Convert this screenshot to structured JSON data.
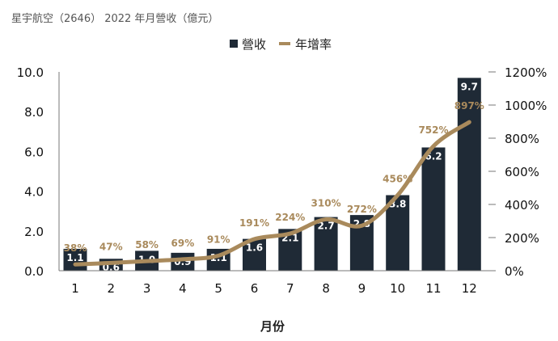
{
  "title": "星宇航空（2646） 2022 年月營收（億元）",
  "chart_data": {
    "type": "bar",
    "title": "星宇航空（2646） 2022 年月營收（億元）",
    "xlabel": "月份",
    "categories": [
      "1",
      "2",
      "3",
      "4",
      "5",
      "6",
      "7",
      "8",
      "9",
      "10",
      "11",
      "12"
    ],
    "series": [
      {
        "name": "營收",
        "kind": "bar",
        "axis": "left",
        "color": "#1f2a36",
        "values": [
          1.1,
          0.6,
          1.0,
          0.9,
          1.1,
          1.6,
          2.1,
          2.7,
          2.8,
          3.8,
          6.2,
          9.7
        ],
        "labels": [
          "1.1",
          "0.6",
          "1.0",
          "0.9",
          "1.1",
          "1.6",
          "2.1",
          "2.7",
          "2.8",
          "3.8",
          "6.2",
          "9.7"
        ]
      },
      {
        "name": "年增率",
        "kind": "line",
        "axis": "right",
        "color": "#a98a5c",
        "values": [
          38,
          47,
          58,
          69,
          91,
          191,
          224,
          310,
          272,
          456,
          752,
          897
        ],
        "labels": [
          "38%",
          "47%",
          "58%",
          "69%",
          "91%",
          "191%",
          "224%",
          "310%",
          "272%",
          "456%",
          "752%",
          "897%"
        ]
      }
    ],
    "y_left": {
      "min": 0,
      "max": 10,
      "ticks": [
        "0.0",
        "2.0",
        "4.0",
        "6.0",
        "8.0",
        "10.0"
      ],
      "tick_values": [
        0,
        2,
        4,
        6,
        8,
        10
      ]
    },
    "y_right": {
      "min": 0,
      "max": 1200,
      "ticks": [
        "0%",
        "200%",
        "400%",
        "600%",
        "800%",
        "1000%",
        "1200%"
      ],
      "tick_values": [
        0,
        200,
        400,
        600,
        800,
        1000,
        1200
      ]
    },
    "grid": false,
    "legend": "top-center"
  }
}
